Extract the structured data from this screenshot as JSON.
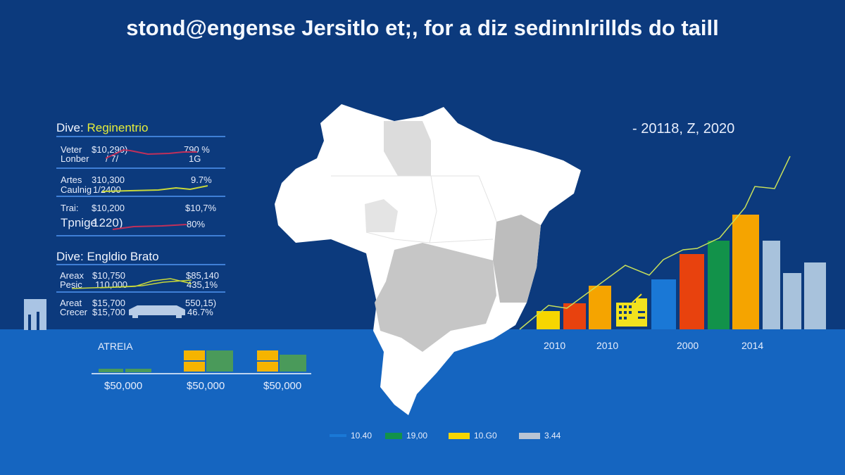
{
  "title": "stond@engense Jersitlo et;, for a diz sedinnlrillds do taill",
  "panel1": {
    "heading_prefix": "Dive:",
    "heading_highlight": "Reginentrio",
    "rows": [
      {
        "label1": "Veter",
        "label2": "Lonber",
        "value1": "$10,290)",
        "value2": "/ 7/",
        "pct1": "790 %",
        "pct2": "1G",
        "line_color": "#c0305a"
      },
      {
        "label1": "Artes",
        "label2": "Caulnig",
        "value1": "310,300",
        "value2": "1/2400",
        "pct1": "9.7%",
        "pct2": "",
        "line_color": "#c8d83a"
      },
      {
        "label1": "Trai:",
        "label2": "Tpnige",
        "value1": "$10,200",
        "value2": "1220)",
        "pct1": "$10,7%",
        "pct2": "80%",
        "line_color": "#c0305a"
      }
    ]
  },
  "panel2": {
    "heading": "Dive: Engldio Brato",
    "rows": [
      {
        "label1": "Areax",
        "label2": "Pesic",
        "value1": "$10,750",
        "value2": "110,000",
        "pct1": "$85,140",
        "pct2": "435,1%"
      },
      {
        "label1": "Areat",
        "label2": "Crecer",
        "value1": "$15,700",
        "value2": "$15,700",
        "pct1": "550,15)",
        "pct2": "46.7%"
      }
    ]
  },
  "mini": {
    "label": "ATREIA",
    "amounts": [
      "$50,000",
      "$50,000",
      "$50,000"
    ]
  },
  "chart_data": {
    "type": "bar",
    "title": "- 20118, Z, 2020",
    "x_tick_labels": [
      "2010",
      "2010",
      "2000",
      "2014"
    ],
    "bars": [
      {
        "value": 26,
        "color": "#f7d600"
      },
      {
        "value": 37,
        "color": "#e8420e"
      },
      {
        "value": 62,
        "color": "#f5a400"
      },
      {
        "value": 71,
        "color": "#1a78d6"
      },
      {
        "value": 107,
        "color": "#e8420e"
      },
      {
        "value": 126,
        "color": "#12924a"
      },
      {
        "value": 163,
        "color": "#f5a400"
      },
      {
        "value": 126,
        "color": "#a8c2dc"
      },
      {
        "value": 80,
        "color": "#a8c2dc"
      },
      {
        "value": 95,
        "color": "#a8c2dc"
      }
    ],
    "line": {
      "color": "#c8e05a",
      "values": [
        0,
        34,
        30,
        91,
        77,
        99,
        113,
        115,
        130,
        173,
        203,
        200,
        246
      ]
    },
    "legend": [
      {
        "label": "10.40",
        "color": "#1a78d6"
      },
      {
        "label": "19,00",
        "color": "#12924a"
      },
      {
        "label": "10.G0",
        "color": "#f7d600"
      },
      {
        "label": "3.44",
        "color": "#b8c4d4"
      }
    ]
  },
  "map": {
    "fill": "#ffffff",
    "region_gray": "#c8c8c8",
    "region_light": "#e0e0e0"
  }
}
